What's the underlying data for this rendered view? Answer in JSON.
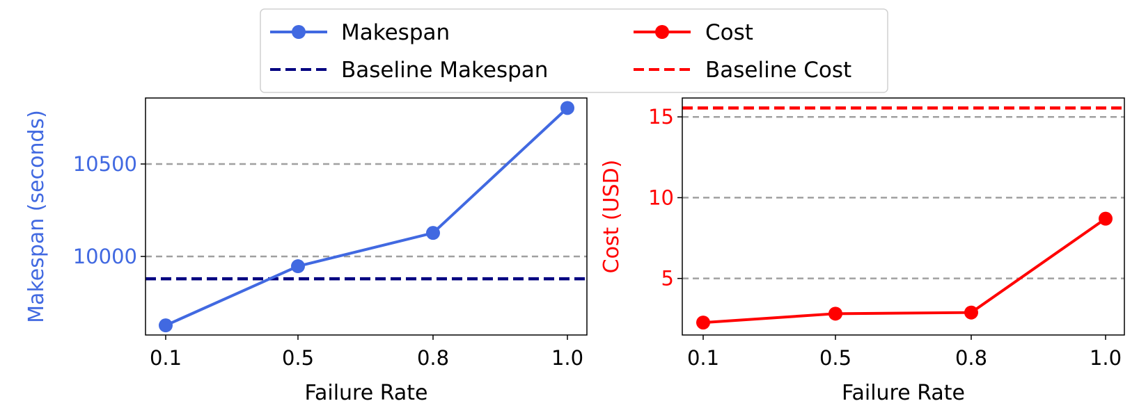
{
  "chart_data": [
    {
      "type": "line",
      "title": "",
      "xlabel": "Failure Rate",
      "ylabel": "Makespan (seconds)",
      "categories": [
        "0.1",
        "0.5",
        "0.8",
        "1.0"
      ],
      "series": [
        {
          "name": "Makespan",
          "values": [
            9627,
            9947,
            10127,
            10803
          ],
          "color": "#4169e1",
          "marker": "circle"
        }
      ],
      "baseline": {
        "name": "Baseline Makespan",
        "value": 9879,
        "color": "#000080",
        "style": "dashed"
      },
      "yticks": [
        10000,
        10500
      ],
      "ytick_labels": [
        "10000",
        "10500"
      ],
      "ylim": [
        9575,
        10857
      ],
      "grid": "horizontal dashed",
      "axis_label_color": "#4169e1"
    },
    {
      "type": "line",
      "title": "",
      "xlabel": "Failure Rate",
      "ylabel": "Cost (USD)",
      "categories": [
        "0.1",
        "0.5",
        "0.8",
        "1.0"
      ],
      "series": [
        {
          "name": "Cost",
          "values": [
            2.27,
            2.82,
            2.89,
            8.7
          ],
          "color": "#ff0000",
          "marker": "circle"
        }
      ],
      "baseline": {
        "name": "Baseline Cost",
        "value": 15.55,
        "color": "#ff0000",
        "style": "dashed"
      },
      "yticks": [
        5,
        10,
        15
      ],
      "ytick_labels": [
        "5",
        "10",
        "15"
      ],
      "ylim": [
        1.5,
        16.17
      ],
      "grid": "horizontal dashed",
      "axis_label_color": "#ff0000"
    }
  ],
  "legend": {
    "placement": "top-center",
    "entries": [
      "Makespan",
      "Cost",
      "Baseline Makespan",
      "Baseline Cost"
    ]
  }
}
